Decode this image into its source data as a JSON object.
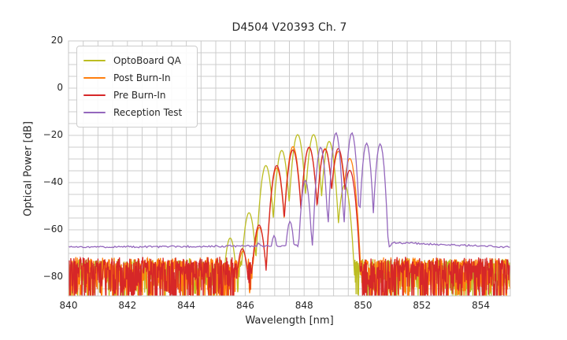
{
  "title": "D4504 V20393 Ch. 7",
  "axes": {
    "xlabel": "Wavelength [nm]",
    "ylabel": "Optical Power [dB]",
    "xlim": [
      840,
      855
    ],
    "ylim": [
      -88,
      20
    ],
    "x_major_ticks": [
      840,
      842,
      844,
      846,
      848,
      850,
      852,
      854
    ],
    "y_major_ticks": [
      20,
      0,
      -20,
      -40,
      -60,
      -80
    ],
    "x_minor_step": 0.5,
    "y_minor_step": 5,
    "grid": true,
    "grid_color": "#cccccc",
    "spine_color": "#c8c8c8"
  },
  "legend": {
    "position": "upper-left",
    "entries": [
      "OptoBoard QA",
      "Post Burn-In",
      "Pre Burn-In",
      "Reception Test"
    ]
  },
  "chart_data": {
    "type": "line",
    "title": "D4504 V20393 Ch. 7",
    "xlabel": "Wavelength [nm]",
    "ylabel": "Optical Power [dB]",
    "xlim": [
      840,
      855
    ],
    "ylim": [
      -88,
      20
    ],
    "legend_position": "upper-left",
    "grid": true,
    "description": "Multimode VCSEL optical spectra; each series is a comb of laser modes (wavelength_nm, peak_dB) above a noise floor",
    "series": [
      {
        "name": "OptoBoard QA",
        "color": "#bcbd22",
        "mode_falloff_db_per_nm2": 350,
        "mode_peaks": [
          [
            845.49,
            -63.5
          ],
          [
            846.13,
            -52.8
          ],
          [
            846.7,
            -32.8
          ],
          [
            847.24,
            -26.4
          ],
          [
            847.78,
            -19.7
          ],
          [
            848.32,
            -19.7
          ],
          [
            848.85,
            -22.6
          ],
          [
            849.38,
            -41.0
          ]
        ],
        "noise": {
          "type": "hash",
          "top_db": -72.0,
          "top_spread_db": 3.0,
          "depth_db": 17
        }
      },
      {
        "name": "Post Burn-In",
        "color": "#ff7f0e",
        "mode_falloff_db_per_nm2": 340,
        "mode_peaks": [
          [
            845.92,
            -69.0
          ],
          [
            846.48,
            -59.0
          ],
          [
            847.07,
            -33.8
          ],
          [
            847.62,
            -24.8
          ],
          [
            848.17,
            -25.2
          ],
          [
            848.71,
            -25.6
          ],
          [
            849.16,
            -26.8
          ],
          [
            849.55,
            -29.8
          ]
        ],
        "noise": {
          "type": "hash",
          "top_db": -71.5,
          "top_spread_db": 3.2,
          "depth_db": 19
        }
      },
      {
        "name": "Pre Burn-In",
        "color": "#d62728",
        "mode_falloff_db_per_nm2": 340,
        "mode_peaks": [
          [
            845.9,
            -68.0
          ],
          [
            846.47,
            -58.0
          ],
          [
            847.07,
            -32.8
          ],
          [
            847.62,
            -26.2
          ],
          [
            848.17,
            -25.0
          ],
          [
            848.71,
            -25.9
          ],
          [
            849.16,
            -25.6
          ],
          [
            849.55,
            -34.8
          ]
        ],
        "noise": {
          "type": "hash",
          "top_db": -71.3,
          "top_spread_db": 3.2,
          "depth_db": 20
        }
      },
      {
        "name": "Reception Test",
        "color": "#9467bd",
        "mode_falloff_db_per_nm2": 560,
        "mode_peaks": [
          [
            846.45,
            -65.5
          ],
          [
            846.98,
            -62.5
          ],
          [
            847.52,
            -56.5
          ],
          [
            848.04,
            -39.0
          ],
          [
            848.56,
            -25.0
          ],
          [
            849.08,
            -18.9
          ],
          [
            849.62,
            -18.9
          ],
          [
            850.12,
            -23.3
          ],
          [
            850.58,
            -23.6
          ]
        ],
        "noise": {
          "type": "floor",
          "left_level_db": -67.4,
          "left_slope_db_per_nm": 0.09,
          "plateau_db": -66.8,
          "right_level_db": -65.4,
          "right_slope_db_per_nm": 0.47,
          "jitter_db": 0.8
        }
      }
    ]
  }
}
